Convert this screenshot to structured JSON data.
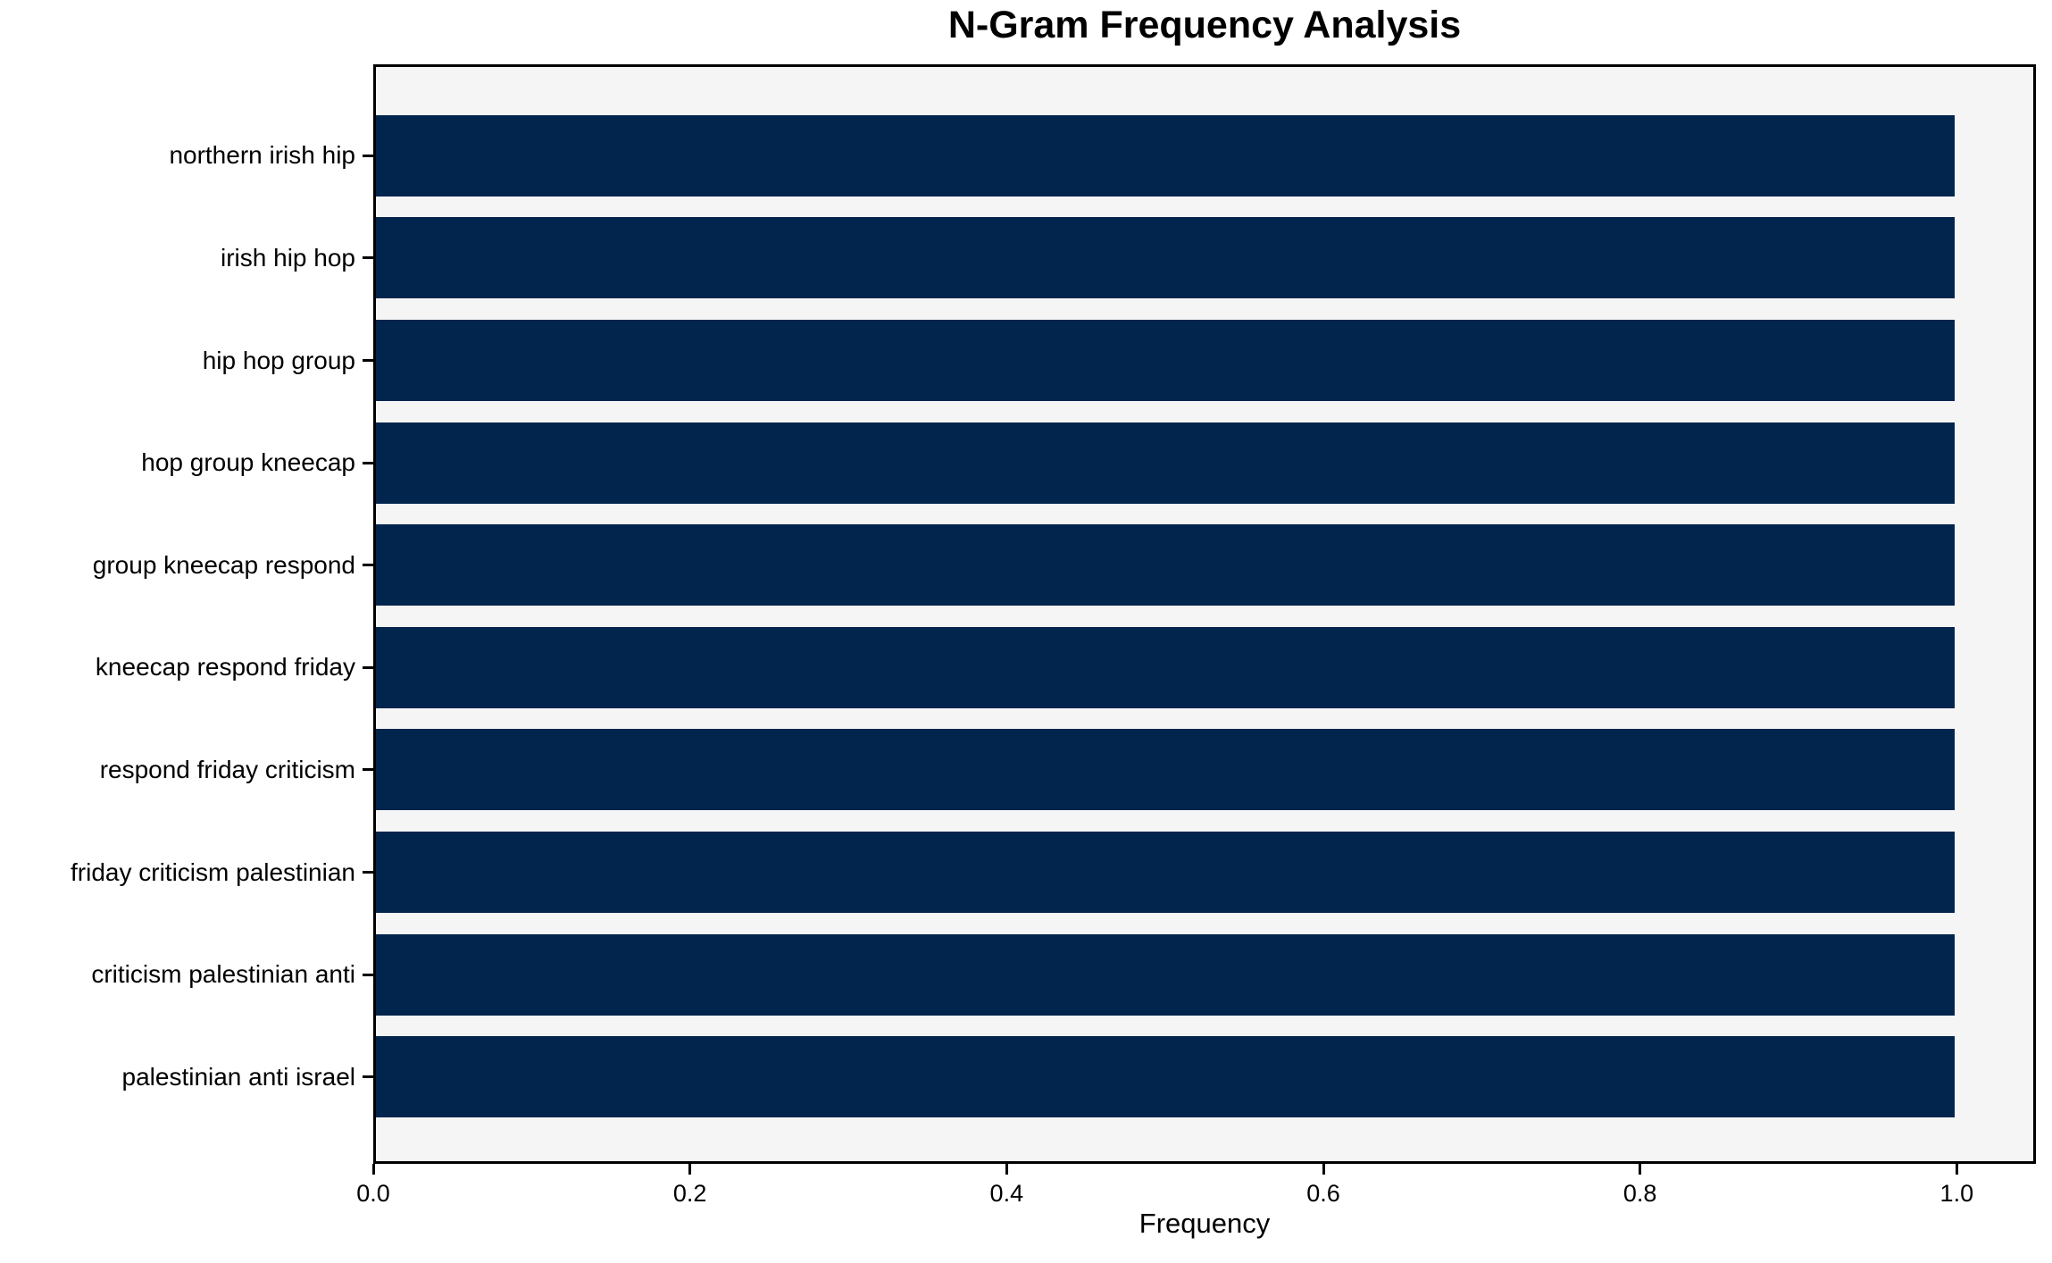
{
  "chart_data": {
    "type": "bar",
    "orientation": "horizontal",
    "title": "N-Gram Frequency Analysis",
    "xlabel": "Frequency",
    "ylabel": "",
    "categories": [
      "northern irish hip",
      "irish hip hop",
      "hip hop group",
      "hop group kneecap",
      "group kneecap respond",
      "kneecap respond friday",
      "respond friday criticism",
      "friday criticism palestinian",
      "criticism palestinian anti",
      "palestinian anti israel"
    ],
    "values": [
      1.0,
      1.0,
      1.0,
      1.0,
      1.0,
      1.0,
      1.0,
      1.0,
      1.0,
      1.0
    ],
    "xticks": [
      "0.0",
      "0.2",
      "0.4",
      "0.6",
      "0.8",
      "1.0"
    ],
    "xtick_values": [
      0.0,
      0.2,
      0.4,
      0.6,
      0.8,
      1.0
    ],
    "xlim": [
      0,
      1.05
    ],
    "grid": false,
    "legend": "none",
    "bar_color": "#02254d",
    "plot_background": "#f5f5f5",
    "figure_background": "#ffffff",
    "spine_color": "#000000"
  }
}
